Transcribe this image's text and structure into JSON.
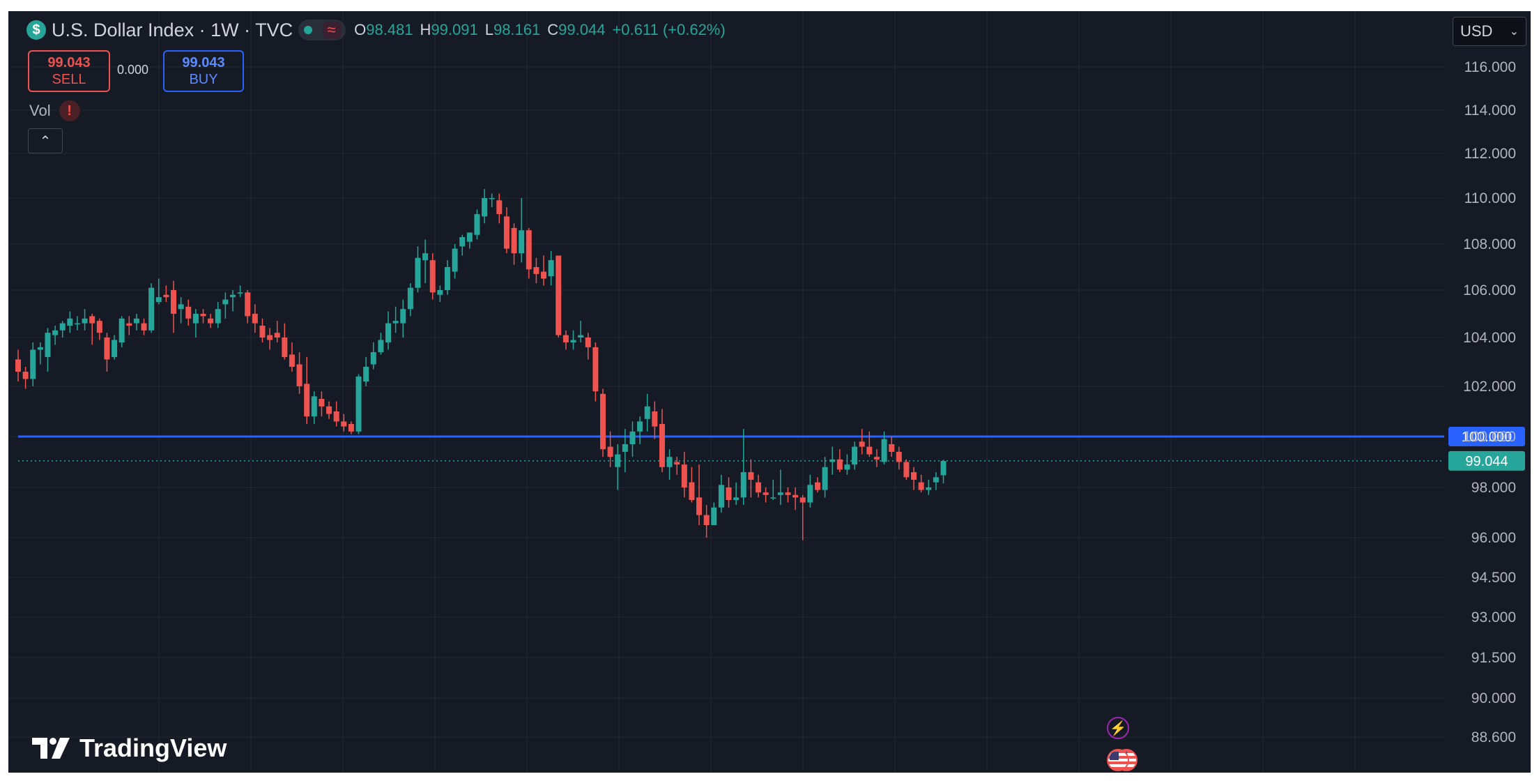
{
  "header": {
    "symbol_icon": "$",
    "title": "U.S. Dollar Index · 1W · TVC",
    "ohlc": {
      "o_label": "O",
      "o": "98.481",
      "h_label": "H",
      "h": "99.091",
      "l_label": "L",
      "l": "98.161",
      "c_label": "C",
      "c": "99.044",
      "change": "+0.611 (+0.62%)"
    }
  },
  "trade": {
    "sell_price": "99.043",
    "sell_label": "SELL",
    "buy_price": "99.043",
    "buy_label": "BUY",
    "spread": "0.000"
  },
  "indicator": {
    "label": "Vol",
    "warning": "!"
  },
  "collapse_icon": "⌃",
  "currency": {
    "selected": "USD"
  },
  "branding": {
    "name": "TradingView"
  },
  "icons": {
    "bolt": "lightning-icon",
    "flag": "us-flag-icon",
    "dropdown": "chevron-down-icon"
  },
  "colors": {
    "up": "#26a69a",
    "down": "#ef5350",
    "level": "#2962ff",
    "background": "#161a25",
    "grid": "#242833",
    "axis_text": "#b2b5be"
  },
  "chart_data": {
    "type": "candlestick",
    "interval": "1W",
    "grid": true,
    "y_ticks": [
      "116.000",
      "114.000",
      "112.000",
      "110.000",
      "108.000",
      "106.000",
      "104.000",
      "102.000",
      "100.000",
      "98.000",
      "96.000",
      "94.500",
      "93.000",
      "91.500",
      "90.000",
      "88.600"
    ],
    "price_lines": [
      {
        "label": "100.000",
        "value": 100.0,
        "color": "#2962ff",
        "style": "solid"
      },
      {
        "label": "99.044",
        "value": 99.044,
        "color": "#26a69a",
        "style": "dotted"
      }
    ],
    "candles": [
      [
        103.1,
        103.5,
        102.2,
        102.6
      ],
      [
        102.6,
        102.8,
        101.9,
        102.3
      ],
      [
        102.3,
        103.8,
        102.0,
        103.5
      ],
      [
        103.5,
        103.8,
        102.9,
        103.6
      ],
      [
        103.2,
        104.4,
        102.6,
        104.2
      ],
      [
        104.1,
        104.5,
        103.7,
        104.3
      ],
      [
        104.3,
        104.7,
        104.0,
        104.6
      ],
      [
        104.5,
        105.1,
        104.2,
        104.8
      ],
      [
        104.6,
        104.9,
        104.3,
        104.6
      ],
      [
        104.6,
        105.2,
        104.3,
        104.8
      ],
      [
        104.9,
        105.0,
        103.7,
        104.6
      ],
      [
        104.7,
        104.8,
        103.9,
        104.2
      ],
      [
        104.0,
        104.2,
        102.6,
        103.1
      ],
      [
        103.2,
        104.1,
        103.1,
        103.9
      ],
      [
        103.8,
        104.9,
        103.6,
        104.8
      ],
      [
        104.6,
        104.9,
        104.1,
        104.5
      ],
      [
        104.6,
        105.0,
        104.3,
        104.8
      ],
      [
        104.6,
        104.8,
        104.1,
        104.3
      ],
      [
        104.3,
        106.3,
        104.2,
        106.1
      ],
      [
        105.5,
        106.5,
        105.4,
        105.7
      ],
      [
        105.8,
        106.2,
        105.5,
        105.7
      ],
      [
        106.0,
        106.4,
        104.2,
        105.0
      ],
      [
        105.2,
        105.7,
        104.6,
        105.4
      ],
      [
        105.3,
        105.6,
        104.5,
        104.8
      ],
      [
        104.6,
        105.2,
        104.0,
        105.0
      ],
      [
        105.0,
        105.2,
        104.6,
        104.9
      ],
      [
        104.8,
        105.0,
        104.4,
        104.6
      ],
      [
        104.6,
        105.5,
        104.4,
        105.2
      ],
      [
        105.4,
        105.9,
        104.8,
        105.6
      ],
      [
        105.7,
        106.0,
        105.1,
        105.8
      ],
      [
        105.9,
        106.2,
        105.7,
        105.9
      ],
      [
        105.9,
        106.0,
        104.6,
        104.9
      ],
      [
        105.0,
        105.4,
        104.2,
        104.6
      ],
      [
        104.5,
        104.8,
        103.8,
        104.0
      ],
      [
        104.1,
        104.4,
        103.5,
        103.9
      ],
      [
        104.2,
        104.7,
        103.8,
        104.0
      ],
      [
        104.0,
        104.6,
        103.1,
        103.2
      ],
      [
        103.3,
        103.8,
        102.6,
        102.8
      ],
      [
        102.9,
        103.4,
        101.7,
        102.0
      ],
      [
        102.1,
        103.2,
        100.5,
        100.8
      ],
      [
        100.8,
        101.8,
        100.5,
        101.6
      ],
      [
        101.5,
        101.8,
        100.8,
        101.2
      ],
      [
        101.2,
        101.4,
        100.7,
        100.9
      ],
      [
        101.0,
        101.4,
        100.4,
        100.6
      ],
      [
        100.6,
        100.9,
        100.2,
        100.4
      ],
      [
        100.5,
        100.6,
        100.1,
        100.2
      ],
      [
        100.2,
        102.5,
        100.1,
        102.4
      ],
      [
        102.2,
        103.2,
        102.0,
        102.8
      ],
      [
        102.9,
        103.8,
        102.7,
        103.4
      ],
      [
        103.4,
        104.2,
        103.3,
        103.9
      ],
      [
        103.8,
        105.1,
        103.5,
        104.6
      ],
      [
        104.6,
        105.3,
        104.2,
        104.7
      ],
      [
        104.6,
        105.6,
        104.0,
        105.2
      ],
      [
        105.2,
        106.3,
        104.9,
        106.1
      ],
      [
        106.1,
        107.9,
        105.9,
        107.4
      ],
      [
        107.3,
        108.2,
        106.3,
        107.6
      ],
      [
        107.3,
        107.6,
        105.6,
        105.9
      ],
      [
        105.8,
        106.2,
        105.5,
        106.0
      ],
      [
        106.0,
        107.3,
        105.8,
        107.0
      ],
      [
        106.8,
        108.0,
        106.5,
        107.8
      ],
      [
        107.9,
        108.4,
        107.5,
        108.3
      ],
      [
        108.1,
        108.5,
        107.8,
        108.5
      ],
      [
        108.4,
        109.5,
        108.2,
        109.3
      ],
      [
        109.2,
        110.4,
        108.9,
        110.0
      ],
      [
        110.0,
        110.2,
        109.6,
        110.0
      ],
      [
        109.9,
        110.2,
        108.9,
        109.3
      ],
      [
        109.2,
        109.6,
        107.6,
        107.8
      ],
      [
        108.7,
        108.9,
        107.1,
        107.6
      ],
      [
        107.6,
        110.0,
        107.2,
        108.6
      ],
      [
        108.6,
        108.7,
        106.5,
        106.9
      ],
      [
        107.0,
        107.4,
        106.3,
        106.7
      ],
      [
        106.8,
        107.5,
        106.2,
        106.5
      ],
      [
        106.6,
        107.7,
        106.2,
        107.3
      ],
      [
        107.5,
        107.5,
        104.0,
        104.1
      ],
      [
        104.1,
        104.3,
        103.5,
        103.8
      ],
      [
        103.8,
        104.3,
        103.5,
        103.9
      ],
      [
        104.0,
        104.7,
        103.8,
        104.1
      ],
      [
        104.0,
        104.2,
        103.1,
        103.6
      ],
      [
        103.6,
        103.8,
        101.4,
        101.8
      ],
      [
        101.7,
        101.9,
        99.2,
        99.5
      ],
      [
        99.6,
        100.2,
        98.8,
        99.2
      ],
      [
        98.8,
        99.7,
        97.9,
        99.3
      ],
      [
        99.4,
        100.3,
        98.6,
        99.7
      ],
      [
        99.7,
        100.6,
        99.2,
        100.2
      ],
      [
        100.2,
        100.8,
        99.7,
        100.6
      ],
      [
        100.7,
        101.7,
        100.2,
        101.2
      ],
      [
        101.0,
        101.4,
        99.9,
        100.4
      ],
      [
        100.5,
        101.1,
        98.6,
        98.8
      ],
      [
        98.8,
        99.5,
        98.3,
        99.2
      ],
      [
        99.0,
        99.2,
        98.5,
        98.9
      ],
      [
        98.9,
        99.4,
        97.6,
        98.0
      ],
      [
        98.2,
        98.8,
        97.4,
        97.5
      ],
      [
        97.6,
        98.9,
        96.5,
        96.9
      ],
      [
        96.9,
        97.3,
        96.0,
        96.5
      ],
      [
        96.5,
        97.4,
        96.5,
        97.2
      ],
      [
        97.2,
        98.5,
        97.0,
        98.1
      ],
      [
        98.0,
        98.4,
        97.2,
        97.5
      ],
      [
        97.5,
        98.2,
        97.3,
        97.6
      ],
      [
        97.6,
        100.3,
        97.3,
        98.6
      ],
      [
        98.6,
        99.1,
        97.6,
        98.3
      ],
      [
        98.2,
        98.5,
        97.6,
        97.8
      ],
      [
        97.8,
        98.0,
        97.4,
        97.7
      ],
      [
        97.6,
        98.3,
        97.5,
        97.6
      ],
      [
        97.7,
        98.7,
        97.3,
        97.8
      ],
      [
        97.8,
        98.0,
        97.4,
        97.7
      ],
      [
        97.7,
        98.0,
        97.1,
        97.6
      ],
      [
        97.6,
        97.7,
        95.9,
        97.4
      ],
      [
        97.4,
        98.5,
        97.2,
        98.1
      ],
      [
        98.2,
        98.4,
        97.8,
        97.9
      ],
      [
        97.9,
        99.2,
        97.6,
        98.8
      ],
      [
        99.0,
        99.6,
        98.5,
        99.1
      ],
      [
        99.1,
        99.5,
        98.6,
        98.7
      ],
      [
        98.7,
        99.3,
        98.5,
        98.9
      ],
      [
        98.9,
        99.8,
        98.7,
        99.6
      ],
      [
        99.8,
        100.3,
        99.3,
        99.6
      ],
      [
        99.6,
        100.2,
        99.2,
        99.3
      ],
      [
        99.2,
        99.5,
        98.8,
        99.1
      ],
      [
        99.0,
        100.2,
        98.9,
        99.9
      ],
      [
        99.7,
        100.0,
        99.2,
        99.4
      ],
      [
        99.4,
        99.6,
        98.7,
        99.0
      ],
      [
        99.0,
        99.1,
        98.3,
        98.4
      ],
      [
        98.6,
        98.8,
        97.9,
        98.3
      ],
      [
        98.2,
        98.5,
        97.8,
        97.9
      ],
      [
        97.9,
        98.3,
        97.7,
        98.0
      ],
      [
        98.2,
        98.6,
        97.9,
        98.4
      ],
      [
        98.48,
        99.09,
        98.16,
        99.04
      ]
    ]
  }
}
